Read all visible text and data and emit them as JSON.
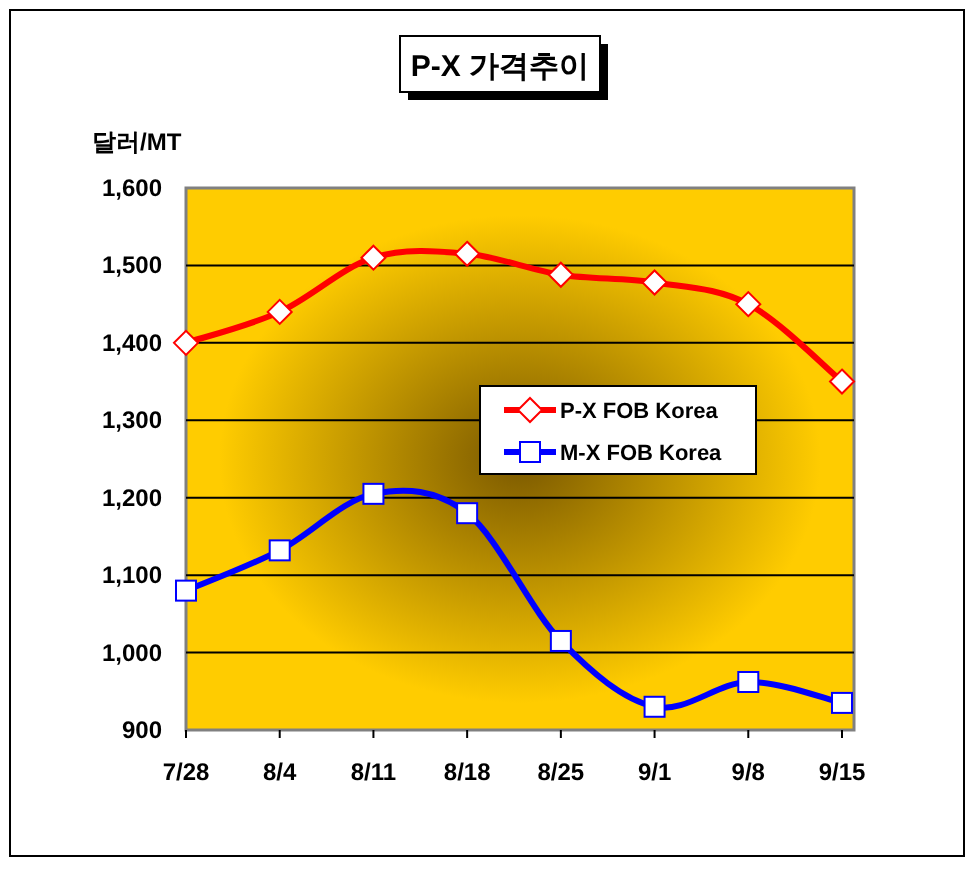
{
  "chart_data": {
    "type": "line",
    "title": "P-X 가격추이",
    "ylabel": "달러/MT",
    "categories": [
      "7/28",
      "8/4",
      "8/11",
      "8/18",
      "8/25",
      "9/1",
      "9/8",
      "9/15"
    ],
    "series": [
      {
        "name": "P-X FOB Korea",
        "color": "#ff0000",
        "marker": "diamond",
        "values": [
          1400,
          1440,
          1510,
          1515,
          1488,
          1478,
          1450,
          1350
        ]
      },
      {
        "name": "M-X FOB Korea",
        "color": "#0000ff",
        "marker": "square",
        "values": [
          1080,
          1132,
          1205,
          1180,
          1015,
          930,
          962,
          935
        ]
      }
    ],
    "ylim": [
      900,
      1600
    ],
    "yticks": [
      {
        "value": 900,
        "label": "900"
      },
      {
        "value": 1000,
        "label": "1,000"
      },
      {
        "value": 1100,
        "label": "1,100"
      },
      {
        "value": 1200,
        "label": "1,200"
      },
      {
        "value": 1300,
        "label": "1,300"
      },
      {
        "value": 1400,
        "label": "1,400"
      },
      {
        "value": 1500,
        "label": "1,500"
      },
      {
        "value": 1600,
        "label": "1,600"
      }
    ],
    "grid": "y",
    "legend": "right"
  }
}
